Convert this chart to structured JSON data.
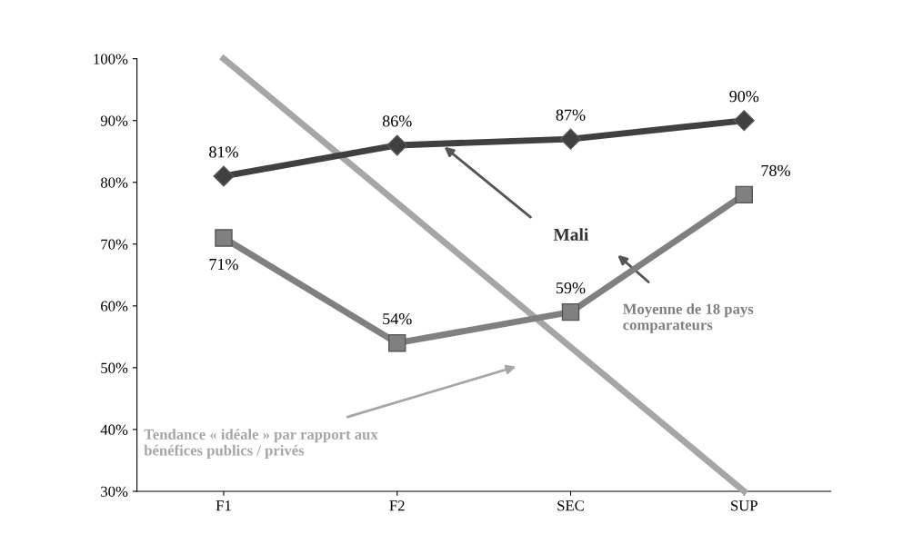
{
  "chart_data": {
    "type": "line",
    "categories": [
      "F1",
      "F2",
      "SEC",
      "SUP"
    ],
    "ylim": [
      30,
      100
    ],
    "yticks": [
      {
        "value": 30,
        "label": "30%"
      },
      {
        "value": 40,
        "label": "40%"
      },
      {
        "value": 50,
        "label": "50%"
      },
      {
        "value": 60,
        "label": "60%"
      },
      {
        "value": 70,
        "label": "70%"
      },
      {
        "value": 80,
        "label": "80%"
      },
      {
        "value": 90,
        "label": "90%"
      },
      {
        "value": 100,
        "label": "100%"
      }
    ],
    "grid": false,
    "legend": false,
    "series": [
      {
        "name": "Tendance « idéale » par rapport aux bénéfices publics / privés",
        "color": "#a6a6a6",
        "marker": "none",
        "values": [
          100,
          null,
          null,
          30
        ]
      },
      {
        "name": "Mali",
        "color": "#404040",
        "marker": "diamond",
        "values": [
          81,
          86,
          87,
          90
        ],
        "value_labels": [
          "81%",
          "86%",
          "87%",
          "90%"
        ]
      },
      {
        "name": "Moyenne de 18 pays comparateurs",
        "color": "#808080",
        "marker": "square",
        "values": [
          71,
          54,
          59,
          78
        ],
        "value_labels": [
          "71%",
          "54%",
          "59%",
          "78%"
        ]
      }
    ]
  }
}
